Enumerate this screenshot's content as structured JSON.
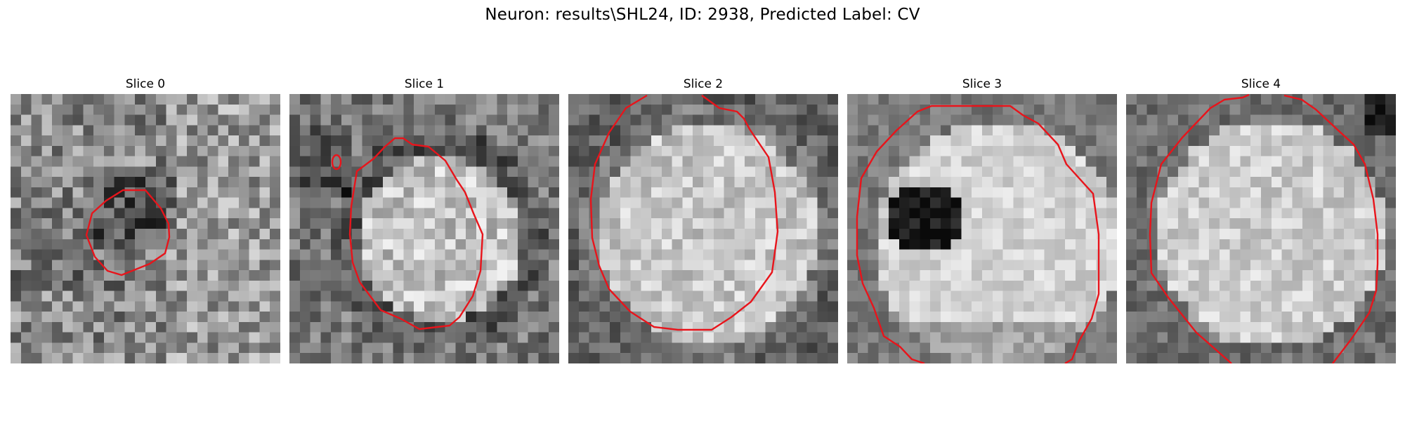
{
  "figure": {
    "title": "Neuron: results\\SHL24, ID: 2938, Predicted Label: CV",
    "contour_color": "#e8141b",
    "slices": [
      {
        "title": "Slice 0",
        "image": "grayscale-microscopy-slice-dim-dark-center"
      },
      {
        "title": "Slice 1",
        "image": "grayscale-microscopy-slice-bright-cell"
      },
      {
        "title": "Slice 2",
        "image": "grayscale-microscopy-slice-bright-cell"
      },
      {
        "title": "Slice 3",
        "image": "grayscale-microscopy-slice-bright-cell-dark-nucleus"
      },
      {
        "title": "Slice 4",
        "image": "grayscale-microscopy-slice-bright-cell"
      }
    ]
  }
}
